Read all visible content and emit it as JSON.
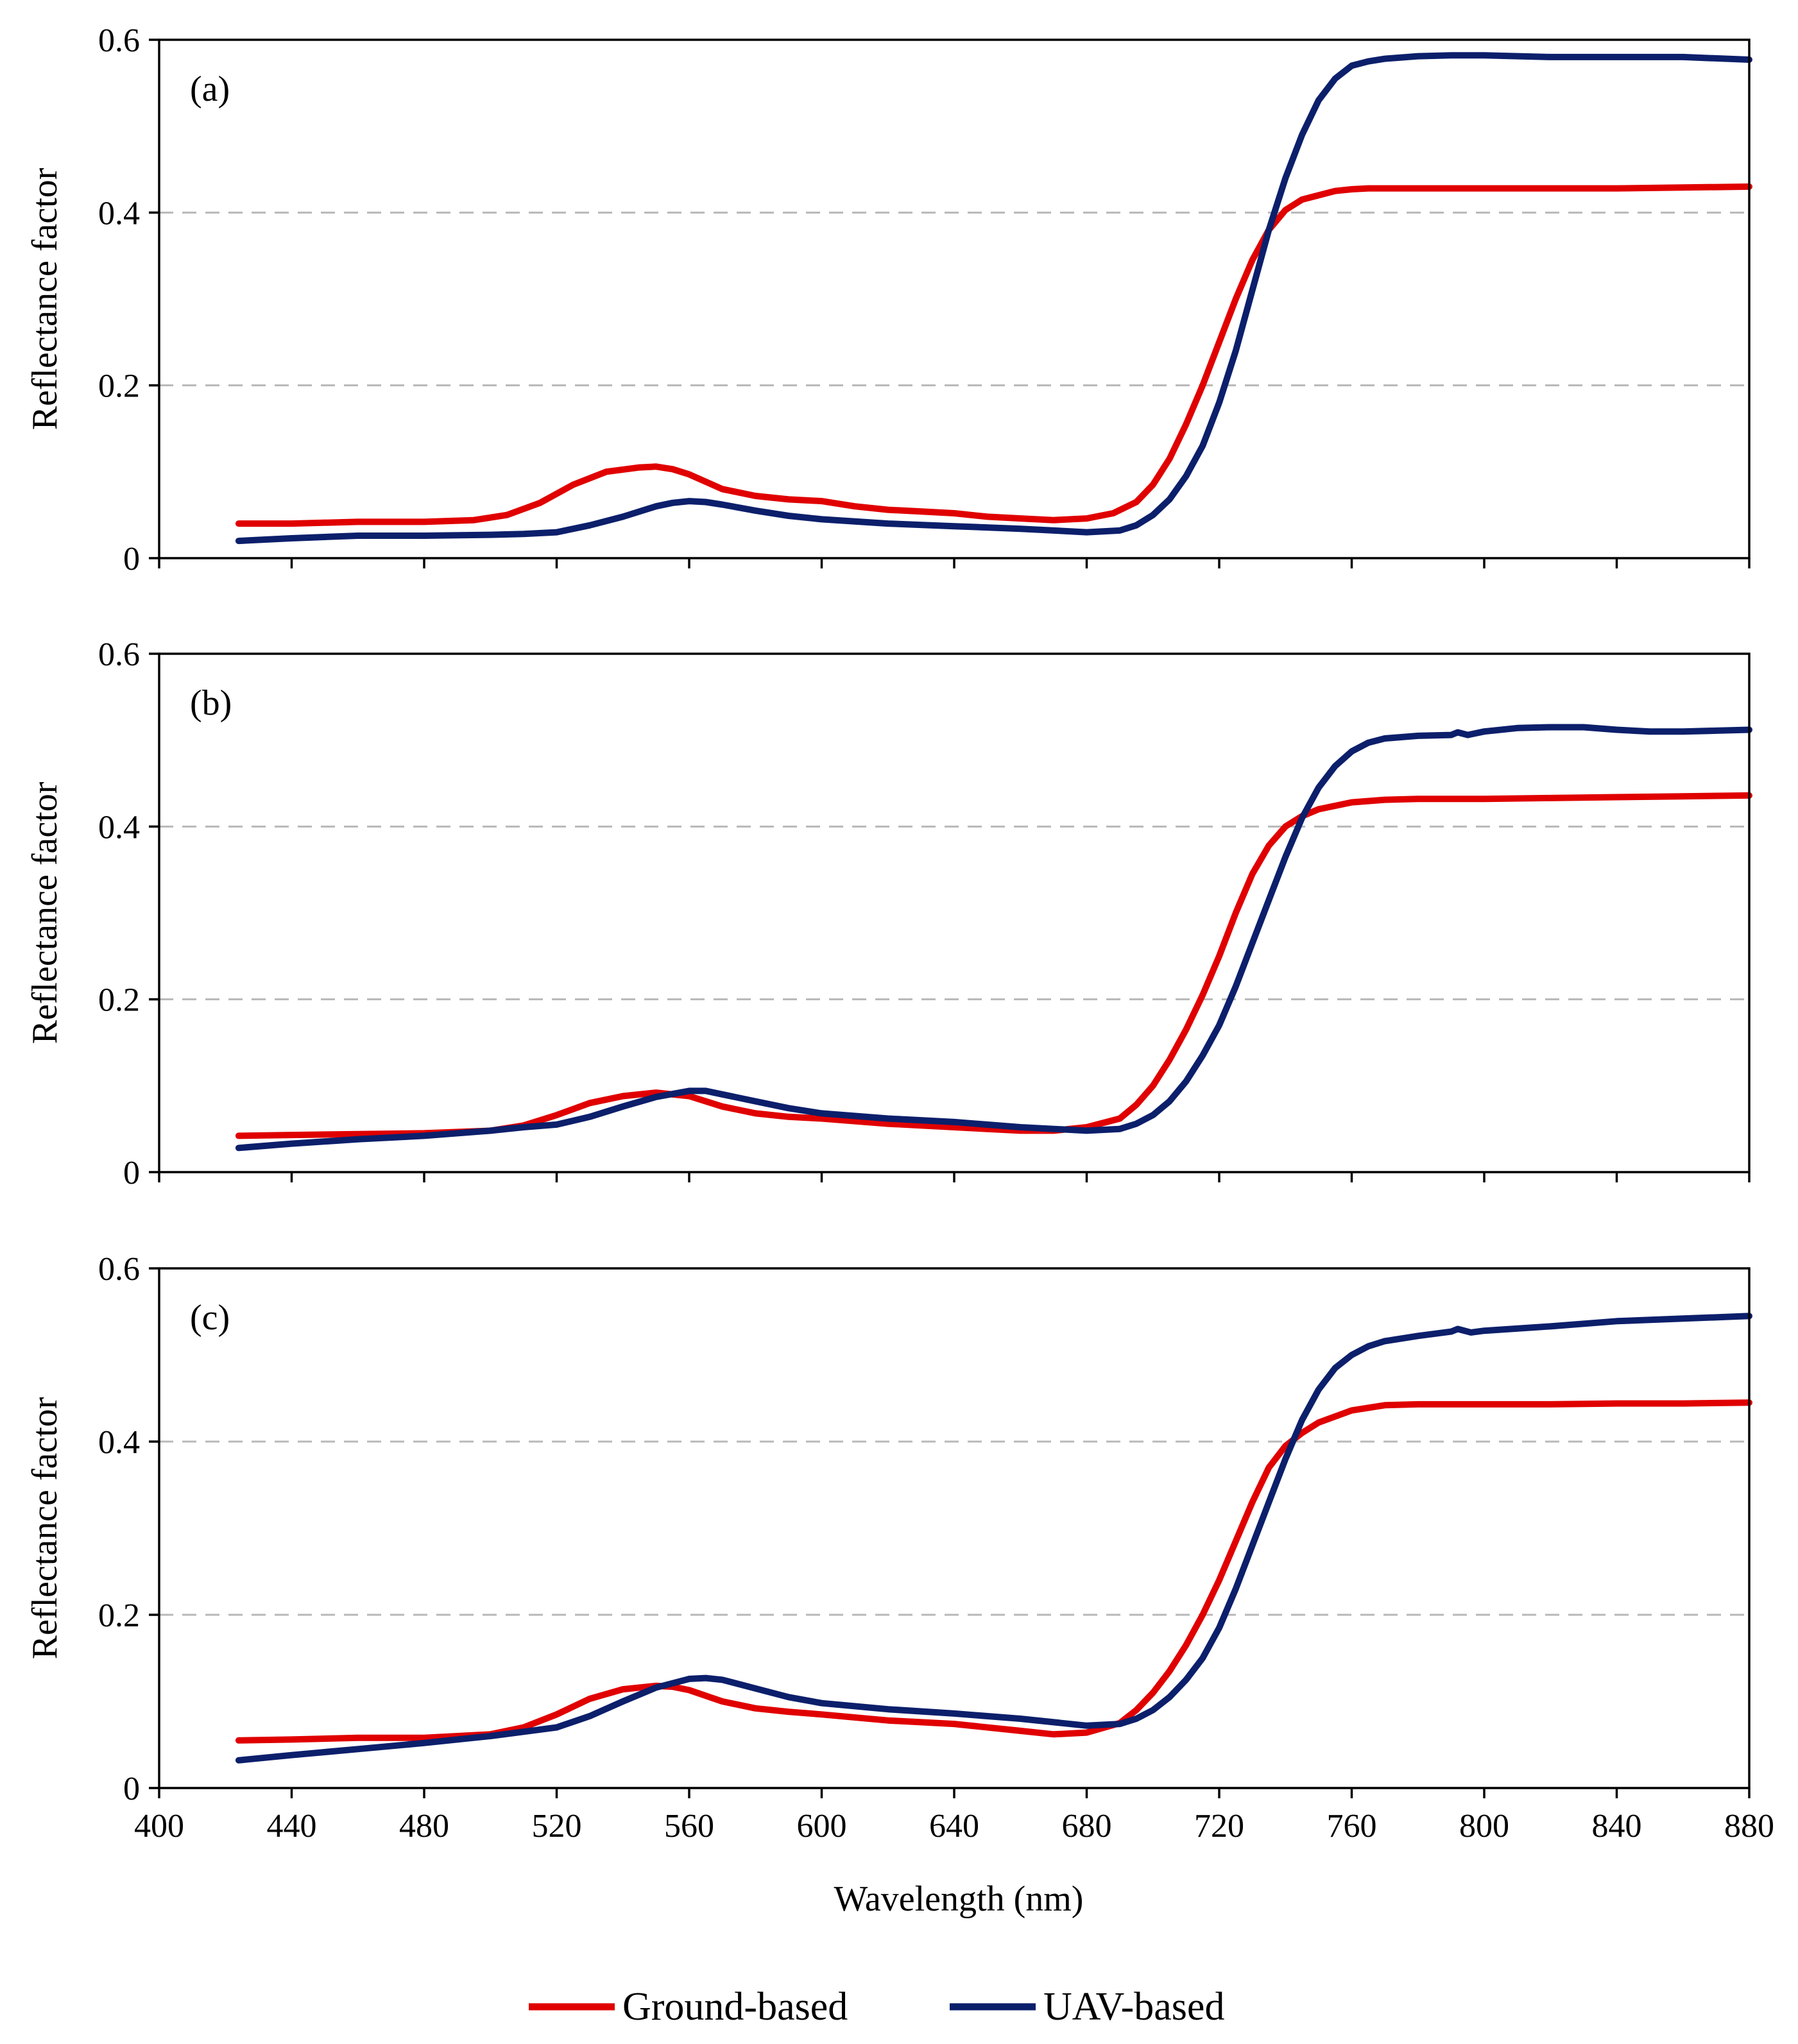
{
  "chart_data": [
    {
      "type": "line",
      "panel_label": "(a)",
      "ylabel": "Reflectance factor",
      "xlabel": "",
      "xlim": [
        400,
        880
      ],
      "ylim": [
        0,
        0.6
      ],
      "y_ticks": [
        "0",
        "0.2",
        "0.4",
        "0.6"
      ],
      "grid": "horizontal dashed",
      "series": [
        {
          "name": "Ground-based",
          "color": "#e00000",
          "x": [
            424,
            440,
            460,
            480,
            495,
            505,
            515,
            525,
            535,
            545,
            550,
            555,
            560,
            570,
            580,
            590,
            600,
            610,
            620,
            630,
            640,
            650,
            660,
            670,
            680,
            688,
            695,
            700,
            705,
            710,
            715,
            720,
            725,
            730,
            735,
            740,
            745,
            750,
            755,
            760,
            765,
            770,
            780,
            800,
            820,
            840,
            860,
            880
          ],
          "y": [
            0.04,
            0.04,
            0.042,
            0.042,
            0.044,
            0.05,
            0.064,
            0.085,
            0.1,
            0.105,
            0.106,
            0.103,
            0.097,
            0.08,
            0.072,
            0.068,
            0.066,
            0.06,
            0.056,
            0.054,
            0.052,
            0.048,
            0.046,
            0.044,
            0.046,
            0.052,
            0.065,
            0.085,
            0.115,
            0.155,
            0.2,
            0.25,
            0.3,
            0.345,
            0.38,
            0.403,
            0.415,
            0.42,
            0.425,
            0.427,
            0.428,
            0.428,
            0.428,
            0.428,
            0.428,
            0.428,
            0.429,
            0.43
          ]
        },
        {
          "name": "UAV-based",
          "color": "#0c1f6b",
          "x": [
            424,
            440,
            460,
            480,
            500,
            510,
            520,
            530,
            540,
            550,
            555,
            560,
            565,
            570,
            580,
            590,
            600,
            620,
            640,
            660,
            680,
            690,
            695,
            700,
            705,
            710,
            715,
            720,
            725,
            730,
            735,
            740,
            745,
            750,
            755,
            760,
            765,
            770,
            780,
            790,
            800,
            820,
            840,
            860,
            880
          ],
          "y": [
            0.02,
            0.023,
            0.026,
            0.026,
            0.027,
            0.028,
            0.03,
            0.038,
            0.048,
            0.06,
            0.064,
            0.066,
            0.065,
            0.062,
            0.055,
            0.049,
            0.045,
            0.04,
            0.037,
            0.034,
            0.03,
            0.032,
            0.038,
            0.05,
            0.068,
            0.095,
            0.13,
            0.18,
            0.24,
            0.31,
            0.38,
            0.44,
            0.49,
            0.53,
            0.555,
            0.57,
            0.575,
            0.578,
            0.581,
            0.582,
            0.582,
            0.58,
            0.58,
            0.58,
            0.577
          ]
        }
      ]
    },
    {
      "type": "line",
      "panel_label": "(b)",
      "ylabel": "Reflectance factor",
      "xlabel": "",
      "xlim": [
        400,
        880
      ],
      "ylim": [
        0,
        0.6
      ],
      "y_ticks": [
        "0",
        "0.2",
        "0.4",
        "0.6"
      ],
      "grid": "horizontal dashed",
      "series": [
        {
          "name": "Ground-based",
          "color": "#e00000",
          "x": [
            424,
            440,
            460,
            480,
            500,
            510,
            520,
            530,
            540,
            550,
            560,
            570,
            580,
            590,
            600,
            620,
            640,
            660,
            670,
            680,
            690,
            695,
            700,
            705,
            710,
            715,
            720,
            725,
            730,
            735,
            740,
            745,
            750,
            760,
            770,
            780,
            800,
            820,
            840,
            860,
            880
          ],
          "y": [
            0.042,
            0.043,
            0.044,
            0.045,
            0.048,
            0.054,
            0.066,
            0.08,
            0.088,
            0.092,
            0.088,
            0.076,
            0.068,
            0.064,
            0.062,
            0.056,
            0.052,
            0.048,
            0.048,
            0.052,
            0.062,
            0.078,
            0.1,
            0.13,
            0.165,
            0.205,
            0.25,
            0.3,
            0.345,
            0.378,
            0.4,
            0.412,
            0.42,
            0.428,
            0.431,
            0.432,
            0.432,
            0.433,
            0.434,
            0.435,
            0.436
          ]
        },
        {
          "name": "UAV-based",
          "color": "#0c1f6b",
          "x": [
            424,
            440,
            460,
            480,
            500,
            510,
            520,
            530,
            540,
            550,
            560,
            565,
            570,
            580,
            590,
            600,
            620,
            640,
            660,
            680,
            690,
            695,
            700,
            705,
            710,
            715,
            720,
            725,
            730,
            735,
            740,
            745,
            750,
            755,
            760,
            765,
            770,
            780,
            790,
            792,
            795,
            800,
            810,
            820,
            830,
            840,
            850,
            860,
            870,
            880
          ],
          "y": [
            0.028,
            0.033,
            0.038,
            0.042,
            0.048,
            0.052,
            0.055,
            0.064,
            0.076,
            0.087,
            0.094,
            0.094,
            0.09,
            0.082,
            0.074,
            0.068,
            0.062,
            0.058,
            0.052,
            0.048,
            0.05,
            0.056,
            0.066,
            0.082,
            0.105,
            0.135,
            0.17,
            0.215,
            0.265,
            0.315,
            0.365,
            0.41,
            0.445,
            0.47,
            0.487,
            0.497,
            0.502,
            0.505,
            0.506,
            0.509,
            0.506,
            0.51,
            0.514,
            0.515,
            0.515,
            0.512,
            0.51,
            0.51,
            0.511,
            0.512
          ]
        }
      ]
    },
    {
      "type": "line",
      "panel_label": "(c)",
      "ylabel": "Reflectance factor",
      "xlabel": "Wavelength (nm)",
      "xlim": [
        400,
        880
      ],
      "ylim": [
        0,
        0.6
      ],
      "x_ticks": [
        "400",
        "440",
        "480",
        "520",
        "560",
        "600",
        "640",
        "680",
        "720",
        "760",
        "800",
        "840",
        "880"
      ],
      "y_ticks": [
        "0",
        "0.2",
        "0.4",
        "0.6"
      ],
      "grid": "horizontal dashed",
      "series": [
        {
          "name": "Ground-based",
          "color": "#e00000",
          "x": [
            424,
            440,
            460,
            480,
            500,
            510,
            520,
            530,
            540,
            550,
            555,
            560,
            570,
            580,
            590,
            600,
            620,
            640,
            660,
            670,
            680,
            690,
            695,
            700,
            705,
            710,
            715,
            720,
            725,
            730,
            735,
            740,
            745,
            750,
            760,
            770,
            780,
            800,
            820,
            840,
            860,
            880
          ],
          "y": [
            0.055,
            0.056,
            0.058,
            0.058,
            0.062,
            0.07,
            0.085,
            0.103,
            0.114,
            0.118,
            0.117,
            0.113,
            0.1,
            0.092,
            0.088,
            0.085,
            0.078,
            0.074,
            0.066,
            0.062,
            0.064,
            0.075,
            0.09,
            0.11,
            0.135,
            0.165,
            0.2,
            0.24,
            0.285,
            0.33,
            0.37,
            0.395,
            0.41,
            0.422,
            0.436,
            0.442,
            0.443,
            0.443,
            0.443,
            0.444,
            0.444,
            0.445
          ]
        },
        {
          "name": "UAV-based",
          "color": "#0c1f6b",
          "x": [
            424,
            440,
            460,
            480,
            500,
            510,
            520,
            530,
            540,
            550,
            560,
            565,
            570,
            580,
            590,
            600,
            620,
            640,
            660,
            680,
            690,
            695,
            700,
            705,
            710,
            715,
            720,
            725,
            730,
            735,
            740,
            745,
            750,
            755,
            760,
            765,
            770,
            780,
            790,
            792,
            796,
            800,
            820,
            840,
            860,
            880
          ],
          "y": [
            0.032,
            0.038,
            0.045,
            0.052,
            0.06,
            0.065,
            0.07,
            0.083,
            0.1,
            0.116,
            0.126,
            0.127,
            0.125,
            0.115,
            0.105,
            0.098,
            0.091,
            0.086,
            0.08,
            0.072,
            0.074,
            0.08,
            0.09,
            0.105,
            0.125,
            0.15,
            0.185,
            0.23,
            0.28,
            0.33,
            0.38,
            0.425,
            0.46,
            0.485,
            0.5,
            0.51,
            0.516,
            0.522,
            0.527,
            0.53,
            0.526,
            0.528,
            0.533,
            0.539,
            0.542,
            0.545
          ]
        }
      ]
    }
  ],
  "legend": {
    "placement": "bottom-center",
    "items": [
      {
        "label": "Ground-based",
        "color": "#e00000"
      },
      {
        "label": "UAV-based",
        "color": "#0c1f6b"
      }
    ]
  }
}
